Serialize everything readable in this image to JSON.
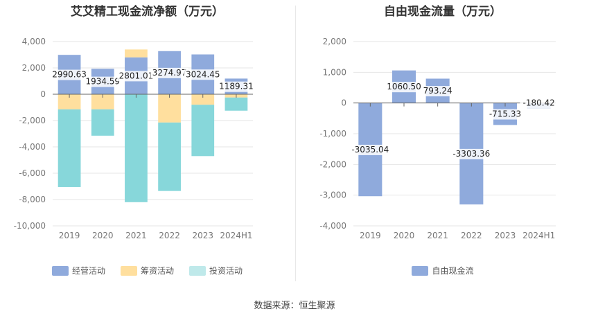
{
  "source_label": "数据来源：恒生聚源",
  "colors": {
    "operating": "#8faadc",
    "financing": "#ffdf9e",
    "investing": "#87d7da",
    "free_cash_flow": "#8faadc"
  },
  "chart_data": [
    {
      "type": "bar",
      "stacked": true,
      "title": "艾艾精工现金流净额（万元）",
      "categories": [
        "2019",
        "2020",
        "2021",
        "2022",
        "2023",
        "2024H1"
      ],
      "series": [
        {
          "name": "经营活动",
          "values": [
            2990.63,
            1934.59,
            2801.01,
            3274.97,
            3024.45,
            1189.31
          ]
        },
        {
          "name": "筹资活动",
          "values": [
            -1150,
            -1150,
            600,
            -2150,
            -800,
            -250
          ]
        },
        {
          "name": "投资活动",
          "values": [
            -5900,
            -2000,
            -8200,
            -5200,
            -3900,
            -1000
          ]
        }
      ],
      "data_labels": [
        "2990.63",
        "1934.59",
        "2801.01",
        "3274.97",
        "3024.45",
        "1189.31"
      ],
      "yticks": [
        "4,000",
        "2,000",
        "0",
        "-2,000",
        "-4,000",
        "-6,000",
        "-8,000",
        "-10,000"
      ],
      "ylim": [
        -10000,
        4000
      ],
      "grid": true,
      "legend": "bottom"
    },
    {
      "type": "bar",
      "title": "自由现金流量（万元）",
      "categories": [
        "2019",
        "2020",
        "2021",
        "2022",
        "2023",
        "2024H1"
      ],
      "series": [
        {
          "name": "自由现金流",
          "values": [
            -3035.04,
            1060.5,
            793.24,
            -3303.36,
            -715.33,
            -180.42
          ]
        }
      ],
      "data_labels": [
        "-3035.04",
        "1060.50",
        "793.24",
        "-3303.36",
        "-715.33",
        "-180.42"
      ],
      "yticks": [
        "2,000",
        "1,000",
        "0",
        "-1,000",
        "-2,000",
        "-3,000",
        "-4,000"
      ],
      "ylim": [
        -4000,
        2000
      ],
      "grid": true,
      "legend": "bottom"
    }
  ]
}
